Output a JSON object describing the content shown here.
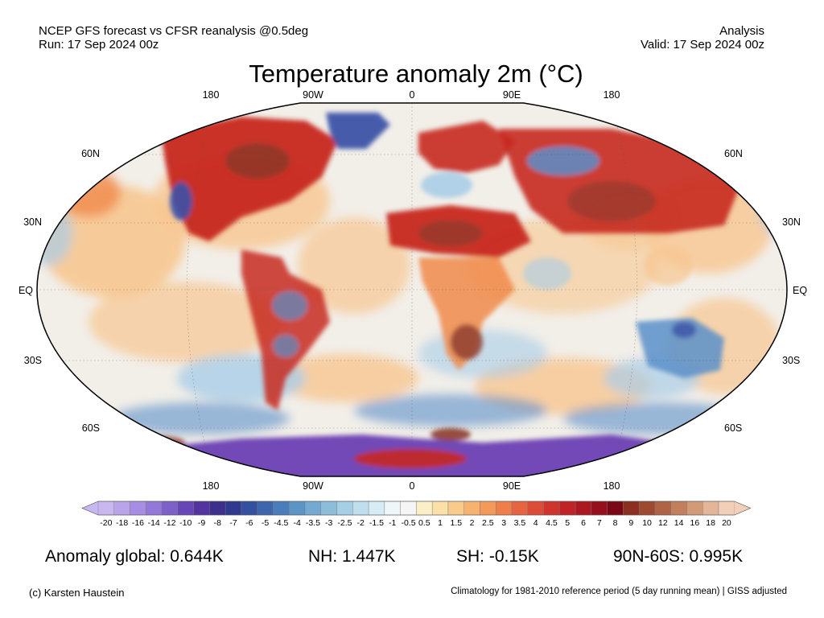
{
  "header": {
    "line1_left": "NCEP GFS forecast vs CFSR reanalysis @0.5deg",
    "line2_left": "Run: 17 Sep 2024 00z",
    "line1_right": "Analysis",
    "line2_right": "Valid: 17 Sep 2024 00z"
  },
  "title": "Temperature anomaly 2m (°C)",
  "map": {
    "lon_labels": [
      "180",
      "90W",
      "0",
      "90E",
      "180"
    ],
    "lat_labels": [
      "60N",
      "30N",
      "EQ",
      "30S",
      "60S"
    ],
    "colors": {
      "ocean_neutral": "#f2efe9",
      "warm_light": "#f7c690",
      "warm": "#f08a4b",
      "hot": "#c7291f",
      "very_hot": "#8b3a2c",
      "cool_light": "#a9cde7",
      "cool": "#5a8fc9",
      "cold": "#3c52a8",
      "very_cold": "#6a3fb3"
    }
  },
  "colorbar": {
    "labels": [
      "-20",
      "-18",
      "-16",
      "-14",
      "-12",
      "-10",
      "-9",
      "-8",
      "-7",
      "-6",
      "-5",
      "-4.5",
      "-4",
      "-3.5",
      "-3",
      "-2.5",
      "-2",
      "-1.5",
      "-1",
      "-0.5",
      "0.5",
      "1",
      "1.5",
      "2",
      "2.5",
      "3",
      "3.5",
      "4",
      "4.5",
      "5",
      "6",
      "7",
      "8",
      "9",
      "10",
      "12",
      "14",
      "16",
      "18",
      "20"
    ],
    "colors": [
      "#c9b8ef",
      "#b9a4ea",
      "#a78ee2",
      "#9478d8",
      "#7e60c9",
      "#6747b7",
      "#53339f",
      "#3d2f8c",
      "#2f3a8f",
      "#33519e",
      "#3d66ad",
      "#4a7dba",
      "#5d94c6",
      "#74aad1",
      "#8cbddb",
      "#a4cfe4",
      "#bfdfee",
      "#d8ecf5",
      "#eef6fa",
      "#f5f5f5",
      "#fbefc8",
      "#fbe0a8",
      "#f9cb8a",
      "#f6b26f",
      "#f39a5b",
      "#ee7f4b",
      "#e66440",
      "#dc4c36",
      "#cf352d",
      "#c02327",
      "#ac1822",
      "#960f1d",
      "#7a0716",
      "#8c2f20",
      "#9e4a32",
      "#b06446",
      "#c27f5d",
      "#d39a78",
      "#e4b598",
      "#f1cfb9"
    ]
  },
  "stats": {
    "global": "Anomaly global: 0.644K",
    "nh": "NH: 1.447K",
    "sh": "SH: -0.15K",
    "polar": "90N-60S: 0.995K"
  },
  "footer": {
    "left": "(c) Karsten Haustein",
    "right": "Climatology for 1981-2010 reference period (5 day running mean) | GISS adjusted"
  }
}
